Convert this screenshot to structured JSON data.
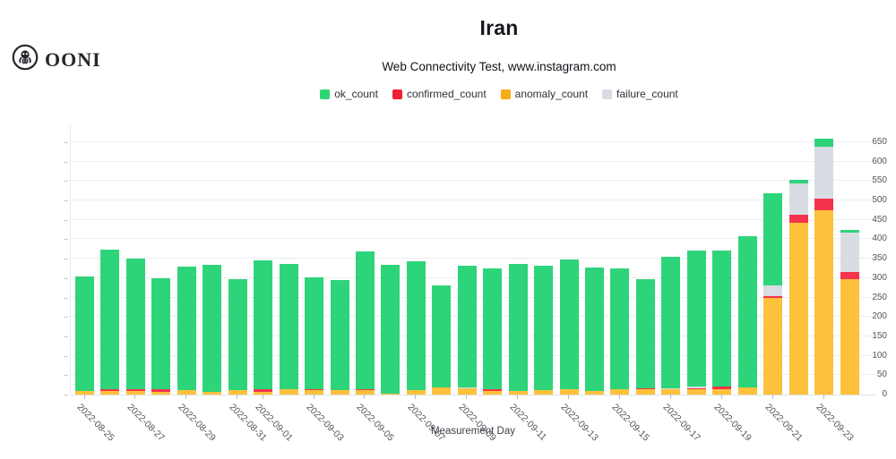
{
  "header": {
    "title": "Iran",
    "subtitle": "Web Connectivity Test, www.instagram.com"
  },
  "logo": {
    "text": "OONI"
  },
  "legend": [
    {
      "label": "ok_count",
      "color": "#2ed573"
    },
    {
      "label": "confirmed_count",
      "color": "#ef2135"
    },
    {
      "label": "anomaly_count",
      "color": "#f9ab17"
    },
    {
      "label": "failure_count",
      "color": "#d8dce3"
    }
  ],
  "chart_data": {
    "type": "bar",
    "stacked": true,
    "title": "Iran",
    "subtitle": "Web Connectivity Test, www.instagram.com",
    "xlabel": "Measurement Day",
    "ylabel": "",
    "ylim": [
      0,
      650
    ],
    "ytick_step": 50,
    "grid": true,
    "legend_position": "top",
    "x_tick_rule": "odd days of month, rotated 45deg",
    "categories": [
      "2022-08-25",
      "2022-08-26",
      "2022-08-27",
      "2022-08-28",
      "2022-08-29",
      "2022-08-30",
      "2022-08-31",
      "2022-09-01",
      "2022-09-02",
      "2022-09-03",
      "2022-09-04",
      "2022-09-05",
      "2022-09-06",
      "2022-09-07",
      "2022-09-08",
      "2022-09-09",
      "2022-09-10",
      "2022-09-11",
      "2022-09-12",
      "2022-09-13",
      "2022-09-14",
      "2022-09-15",
      "2022-09-16",
      "2022-09-17",
      "2022-09-18",
      "2022-09-19",
      "2022-09-20",
      "2022-09-21",
      "2022-09-22",
      "2022-09-23",
      "2022-09-24"
    ],
    "series": [
      {
        "name": "anomaly_count",
        "color": "#fdc13c",
        "values": [
          10,
          9,
          9,
          8,
          11,
          6,
          11,
          8,
          14,
          12,
          12,
          11,
          2,
          12,
          18,
          16,
          10,
          10,
          12,
          15,
          10,
          15,
          13,
          13,
          13,
          15,
          18,
          250,
          443,
          475,
          298
        ]
      },
      {
        "name": "confirmed_count",
        "color": "#f5334d",
        "values": [
          0,
          4,
          4,
          5,
          0,
          0,
          0,
          5,
          0,
          3,
          0,
          4,
          0,
          0,
          0,
          0,
          5,
          0,
          0,
          0,
          0,
          0,
          4,
          0,
          4,
          5,
          0,
          3,
          20,
          30,
          18
        ]
      },
      {
        "name": "failure_count",
        "color": "#d8dce3",
        "values": [
          0,
          0,
          0,
          0,
          0,
          0,
          0,
          0,
          0,
          0,
          0,
          0,
          0,
          0,
          0,
          3,
          0,
          0,
          0,
          0,
          0,
          0,
          0,
          4,
          3,
          0,
          0,
          29,
          80,
          133,
          100
        ]
      },
      {
        "name": "ok_count",
        "color": "#2ed47a",
        "values": [
          295,
          360,
          337,
          287,
          319,
          328,
          287,
          333,
          322,
          287,
          284,
          354,
          332,
          332,
          264,
          313,
          310,
          327,
          320,
          333,
          318,
          310,
          280,
          337,
          350,
          352,
          390,
          236,
          9,
          20,
          7
        ]
      }
    ]
  }
}
